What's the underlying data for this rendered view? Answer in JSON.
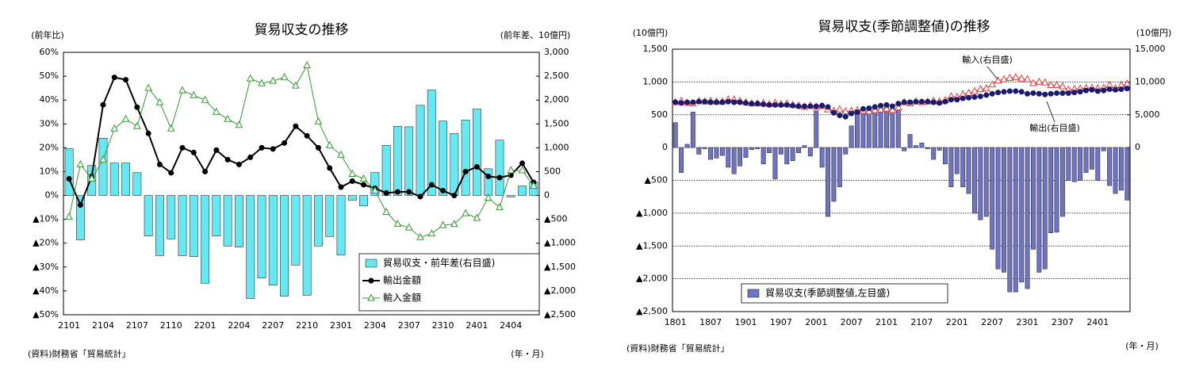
{
  "chart_data": [
    {
      "type": "combo",
      "title": "貿易収支の推移",
      "ylabel": "(前年比)",
      "y2label": "(前年差、10億円)",
      "source": "(資料)財務省「貿易統計」",
      "xlabel": "(年・月)",
      "categories": [
        "2101",
        null,
        null,
        "2104",
        null,
        null,
        "2107",
        null,
        null,
        "2110",
        null,
        null,
        "2201",
        null,
        null,
        "2204",
        null,
        null,
        "2207",
        null,
        null,
        "2210",
        null,
        null,
        "2301",
        null,
        null,
        "2304",
        null,
        null,
        "2307",
        null,
        null,
        "2310",
        null,
        null,
        "2401",
        null,
        null,
        "2404",
        null,
        null
      ],
      "ylim": [
        -50,
        60
      ],
      "yticks": [
        {
          "value": 60,
          "label": "60%"
        },
        {
          "value": 50,
          "label": "50%"
        },
        {
          "value": 40,
          "label": "40%"
        },
        {
          "value": 30,
          "label": "30%"
        },
        {
          "value": 20,
          "label": "20%"
        },
        {
          "value": 10,
          "label": "10%"
        },
        {
          "value": 0,
          "label": "0%"
        },
        {
          "value": -10,
          "label": "▲10%"
        },
        {
          "value": -20,
          "label": "▲20%"
        },
        {
          "value": -30,
          "label": "▲30%"
        },
        {
          "value": -40,
          "label": "▲40%"
        },
        {
          "value": -50,
          "label": "▲50%"
        }
      ],
      "y2lim": [
        -2500,
        3000
      ],
      "y2ticks": [
        {
          "value": 3000,
          "label": "3,000"
        },
        {
          "value": 2500,
          "label": "2,500"
        },
        {
          "value": 2000,
          "label": "2,000"
        },
        {
          "value": 1500,
          "label": "1,500"
        },
        {
          "value": 1000,
          "label": "1,000"
        },
        500,
        0,
        {
          "value": -500,
          "label": "▲500"
        },
        {
          "value": -1000,
          "label": "▲1,000"
        },
        {
          "value": -1500,
          "label": "▲1,500"
        },
        {
          "value": -2000,
          "label": "▲2,000"
        },
        {
          "value": -2500,
          "label": "▲2,500"
        }
      ],
      "grid": false,
      "legend": "lower right",
      "series": [
        {
          "name": "貿易収支・前年差(右目盛)",
          "kind": "bar",
          "axis": "y2",
          "color": "#66e8f2",
          "values": [
            980,
            -930,
            630,
            1200,
            680,
            680,
            480,
            -850,
            -1260,
            -910,
            -1260,
            -1280,
            -1840,
            -850,
            -1060,
            -1080,
            -2160,
            -1730,
            -1880,
            -2110,
            -1460,
            -2090,
            -1060,
            -860,
            -1250,
            -100,
            -220,
            480,
            1050,
            1450,
            1440,
            1890,
            2210,
            1560,
            1300,
            1580,
            1810,
            560,
            1160,
            -30,
            200,
            280
          ]
        },
        {
          "name": "輸出金額",
          "kind": "line",
          "marker": "circle",
          "color": "#000000",
          "values": [
            7,
            -4,
            8,
            38,
            49.5,
            48.5,
            37,
            26,
            13,
            9.5,
            20,
            18,
            10,
            19,
            15,
            13,
            16,
            20,
            19.5,
            22,
            29,
            25,
            20,
            11.5,
            3.5,
            6,
            4.5,
            3,
            1,
            1.5,
            1.5,
            -0.5,
            4.5,
            2,
            0,
            10,
            12,
            8,
            7.5,
            8.5,
            13.5,
            5.5
          ]
        },
        {
          "name": "輸入金額",
          "kind": "line",
          "marker": "triangle",
          "color": "#339933",
          "values": [
            -9,
            13,
            7,
            15,
            28,
            32,
            29,
            45,
            39,
            28,
            44,
            42,
            40,
            35,
            32,
            29.5,
            49,
            47,
            48,
            49.5,
            46,
            54.5,
            31,
            21,
            17,
            9,
            7,
            2,
            -7,
            -12,
            -13.5,
            -17.5,
            -16,
            -12.5,
            -12,
            -7.5,
            -9.5,
            -1,
            -5,
            10.5,
            10.5,
            4
          ]
        }
      ]
    },
    {
      "type": "combo",
      "title": "貿易収支(季節調整値)の推移",
      "ylabel": "(10億円)",
      "y2label": "(10億円)",
      "source": "(資料)財務省「貿易統計」",
      "xlabel": "(年・月)",
      "categories": [
        "1801",
        null,
        null,
        null,
        null,
        null,
        "1807",
        null,
        null,
        null,
        null,
        null,
        "1901",
        null,
        null,
        null,
        null,
        null,
        "1907",
        null,
        null,
        null,
        null,
        null,
        "2001",
        null,
        null,
        null,
        null,
        null,
        "2007",
        null,
        null,
        null,
        null,
        null,
        "2101",
        null,
        null,
        null,
        null,
        null,
        "2107",
        null,
        null,
        null,
        null,
        null,
        "2201",
        null,
        null,
        null,
        null,
        null,
        "2207",
        null,
        null,
        null,
        null,
        null,
        "2301",
        null,
        null,
        null,
        null,
        null,
        "2307",
        null,
        null,
        null,
        null,
        null,
        "2401",
        null,
        null,
        null,
        null,
        null
      ],
      "ylim": [
        -2500,
        1500
      ],
      "yticks": [
        {
          "value": 1500,
          "label": "1,500"
        },
        {
          "value": 1000,
          "label": "1,000"
        },
        500,
        0,
        {
          "value": -500,
          "label": "▲500"
        },
        {
          "value": -1000,
          "label": "▲1,000"
        },
        {
          "value": -1500,
          "label": "▲1,500"
        },
        {
          "value": -2000,
          "label": "▲2,000"
        },
        {
          "value": -2500,
          "label": "▲2,500"
        }
      ],
      "y2lim": [
        -25000,
        15000
      ],
      "y2ticks": [
        {
          "value": 15000,
          "label": "15,000"
        },
        {
          "value": 10000,
          "label": "10,000"
        },
        {
          "value": 5000,
          "label": "5,000"
        },
        0
      ],
      "grid": true,
      "legend": "lower left",
      "series": [
        {
          "name": "貿易収支(季節調整値,左目盛)",
          "kind": "bar",
          "color": "#6f73c8",
          "values": [
            380,
            -380,
            50,
            540,
            -100,
            -20,
            -180,
            -160,
            -120,
            -300,
            -400,
            -280,
            -150,
            -30,
            -20,
            -250,
            -80,
            -480,
            -100,
            -250,
            -200,
            -80,
            30,
            -130,
            560,
            -300,
            -1050,
            -820,
            -600,
            -100,
            330,
            550,
            580,
            600,
            620,
            650,
            620,
            590,
            600,
            -50,
            200,
            30,
            70,
            -20,
            -180,
            -40,
            -250,
            -600,
            -400,
            -600,
            -700,
            -1000,
            -1100,
            -1050,
            -1550,
            -1850,
            -1900,
            -2200,
            -2200,
            -2050,
            -2150,
            -1550,
            -1900,
            -1850,
            -1300,
            -1290,
            -1050,
            -500,
            -520,
            -500,
            -380,
            -330,
            -500,
            -50,
            -580,
            -700,
            -650,
            -800
          ]
        },
        {
          "name": "輸入(右目盛)",
          "kind": "line",
          "marker": "triangle",
          "axis": "y2",
          "color": "#e04040",
          "direct_label": true,
          "values": [
            6900,
            7100,
            6800,
            6700,
            7100,
            7000,
            7100,
            7000,
            7000,
            7300,
            7300,
            7100,
            6900,
            6700,
            6700,
            6800,
            6600,
            6800,
            6600,
            6700,
            6500,
            6400,
            6200,
            6400,
            6200,
            6300,
            5800,
            5600,
            5800,
            5500,
            5600,
            5700,
            5600,
            5500,
            5700,
            5800,
            5900,
            5700,
            6100,
            6900,
            6700,
            7000,
            6900,
            7000,
            7100,
            7000,
            7200,
            7800,
            7700,
            8100,
            8300,
            8600,
            8900,
            9000,
            9600,
            10200,
            10400,
            10600,
            10700,
            10500,
            10400,
            9800,
            10000,
            9900,
            9500,
            9500,
            9300,
            8800,
            8900,
            9000,
            9100,
            9100,
            9000,
            9100,
            9500,
            9000,
            9500,
            9700
          ]
        },
        {
          "name": "輸出(右目盛)",
          "kind": "line",
          "marker": "circle",
          "axis": "y2",
          "color": "#1a1a6e",
          "direct_label": true,
          "values": [
            6900,
            6800,
            6900,
            6900,
            7000,
            7000,
            6900,
            6900,
            6900,
            7000,
            6900,
            6900,
            6800,
            6700,
            6700,
            6600,
            6500,
            6500,
            6500,
            6500,
            6400,
            6300,
            6300,
            6300,
            6300,
            6400,
            6200,
            5300,
            4900,
            4700,
            5200,
            5400,
            5900,
            6000,
            6200,
            6400,
            6500,
            6300,
            6700,
            6900,
            6900,
            7000,
            7000,
            7000,
            6900,
            6800,
            7000,
            7300,
            7300,
            7500,
            7600,
            7700,
            7800,
            8000,
            8200,
            8400,
            8500,
            8600,
            8600,
            8500,
            8200,
            8300,
            8200,
            8100,
            8200,
            8300,
            8300,
            8300,
            8400,
            8500,
            8700,
            8800,
            8600,
            8700,
            8900,
            8800,
            8900,
            9000
          ]
        }
      ]
    }
  ]
}
